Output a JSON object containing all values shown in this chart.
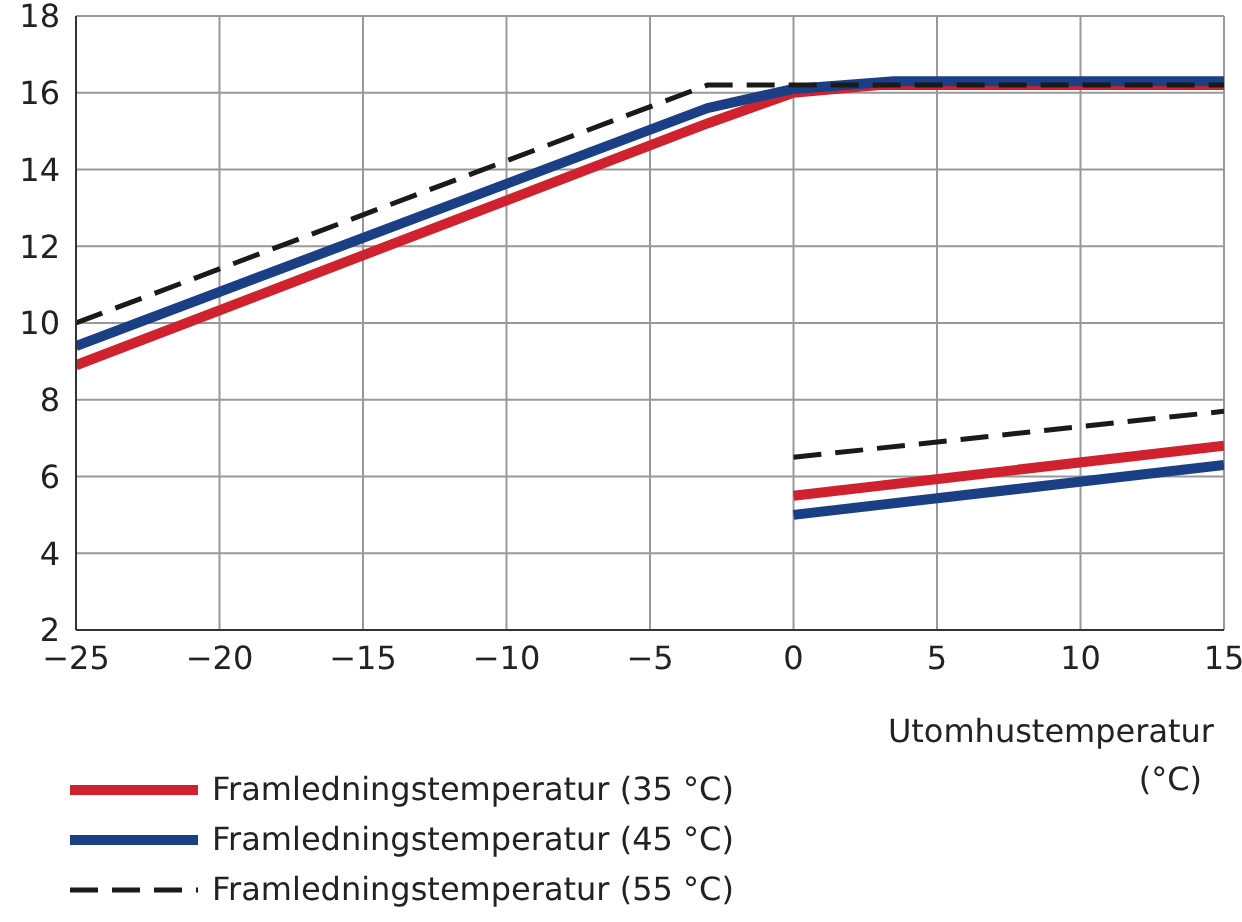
{
  "chart_data": {
    "type": "line",
    "xlabel": "Utomhustemperatur (°C)",
    "xlim": [
      -25,
      15
    ],
    "ylim": [
      2,
      18
    ],
    "xticks": [
      {
        "value": -25,
        "label": "−25"
      },
      {
        "value": -20,
        "label": "−20"
      },
      {
        "value": -15,
        "label": "−15"
      },
      {
        "value": -10,
        "label": "−10"
      },
      {
        "value": -5,
        "label": "−5"
      },
      0,
      5,
      10,
      15
    ],
    "yticks": [
      2,
      4,
      6,
      8,
      10,
      12,
      14,
      16,
      18
    ],
    "grid": true,
    "legend": "bottom left",
    "marker": "none",
    "series": [
      {
        "name": "Framledningstemperatur (35 °C)",
        "color": "#d0222e",
        "line_style": "solid",
        "x": [
          -25,
          -3,
          0,
          3,
          15,
          null,
          0,
          15
        ],
        "values": [
          8.9,
          15.2,
          16,
          16.2,
          16.2,
          null,
          5.5,
          6.8
        ]
      },
      {
        "name": "Framledningstemperatur (45 °C)",
        "color": "#1a3f85",
        "line_style": "solid",
        "x": [
          -25,
          -3,
          0,
          3.5,
          15,
          null,
          0,
          15
        ],
        "values": [
          9.4,
          15.6,
          16.1,
          16.3,
          16.3,
          null,
          5,
          6.3
        ]
      },
      {
        "name": "Framledningstemperatur (55 °C)",
        "color": "#1a1a1a",
        "line_style": "dashed",
        "x": [
          -25,
          -3,
          0,
          15,
          null,
          0,
          15
        ],
        "values": [
          10,
          16.2,
          16.2,
          16.2,
          null,
          6.5,
          7.7
        ]
      }
    ]
  }
}
